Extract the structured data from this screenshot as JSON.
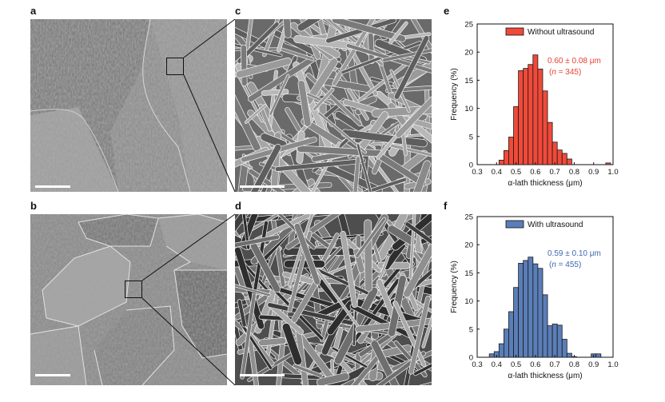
{
  "panels": {
    "a": "a",
    "b": "b",
    "c": "c",
    "d": "d",
    "e": "e",
    "f": "f"
  },
  "colors": {
    "without_fill": "#f04a3a",
    "without_text": "#e8412f",
    "with_fill": "#5a7eb8",
    "with_text": "#3d67b0",
    "bar_edge": "#1a1a1a",
    "axis": "#111111"
  },
  "chart_data": [
    {
      "panel": "e",
      "type": "bar",
      "xlabel": "α-lath thickness (μm)",
      "ylabel": "Frequency (%)",
      "xlim": [
        0.3,
        1.0
      ],
      "ylim": [
        0,
        25
      ],
      "x_ticks": [
        "0.3",
        "0.4",
        "0.5",
        "0.6",
        "0.7",
        "0.8",
        "0.9",
        "1.0"
      ],
      "y_ticks": [
        "0",
        "5",
        "10",
        "15",
        "20",
        "25"
      ],
      "bin_width": 0.025,
      "bin_centers": [
        0.425,
        0.45,
        0.475,
        0.5,
        0.525,
        0.55,
        0.575,
        0.6,
        0.625,
        0.65,
        0.675,
        0.7,
        0.725,
        0.75,
        0.775,
        0.8,
        0.975
      ],
      "values": [
        0.8,
        2.5,
        4.9,
        10.3,
        16.7,
        17.1,
        17.8,
        19.5,
        17.0,
        13.1,
        7.5,
        4.0,
        2.6,
        2.0,
        1.0,
        0,
        0.3
      ],
      "legend": "Without ultrasound",
      "annotation_line1": "0.60 ± 0.08 μm",
      "annotation_line2_pre": "(",
      "annotation_line2_n": "n",
      "annotation_line2_post": " = 345)"
    },
    {
      "panel": "f",
      "type": "bar",
      "xlabel": "α-lath thickness (μm)",
      "ylabel": "Frequency (%)",
      "xlim": [
        0.3,
        1.0
      ],
      "ylim": [
        0,
        25
      ],
      "x_ticks": [
        "0.3",
        "0.4",
        "0.5",
        "0.6",
        "0.7",
        "0.8",
        "0.9",
        "1.0"
      ],
      "y_ticks": [
        "0",
        "5",
        "10",
        "15",
        "20",
        "25"
      ],
      "bin_width": 0.025,
      "bin_centers": [
        0.375,
        0.4,
        0.425,
        0.45,
        0.475,
        0.5,
        0.525,
        0.55,
        0.575,
        0.6,
        0.625,
        0.65,
        0.675,
        0.7,
        0.725,
        0.75,
        0.775,
        0.8,
        0.9,
        0.925
      ],
      "values": [
        0.6,
        1.0,
        2.4,
        5.0,
        8.1,
        12.4,
        16.7,
        17.2,
        17.8,
        16.6,
        15.8,
        11.1,
        5.6,
        5.9,
        5.7,
        3.2,
        0.7,
        0.1,
        0.6,
        0.6
      ],
      "legend": "With ultrasound",
      "annotation_line1": "0.59 ± 0.10 μm",
      "annotation_line2_pre": "(",
      "annotation_line2_n": "n",
      "annotation_line2_post": " = 455)"
    }
  ]
}
